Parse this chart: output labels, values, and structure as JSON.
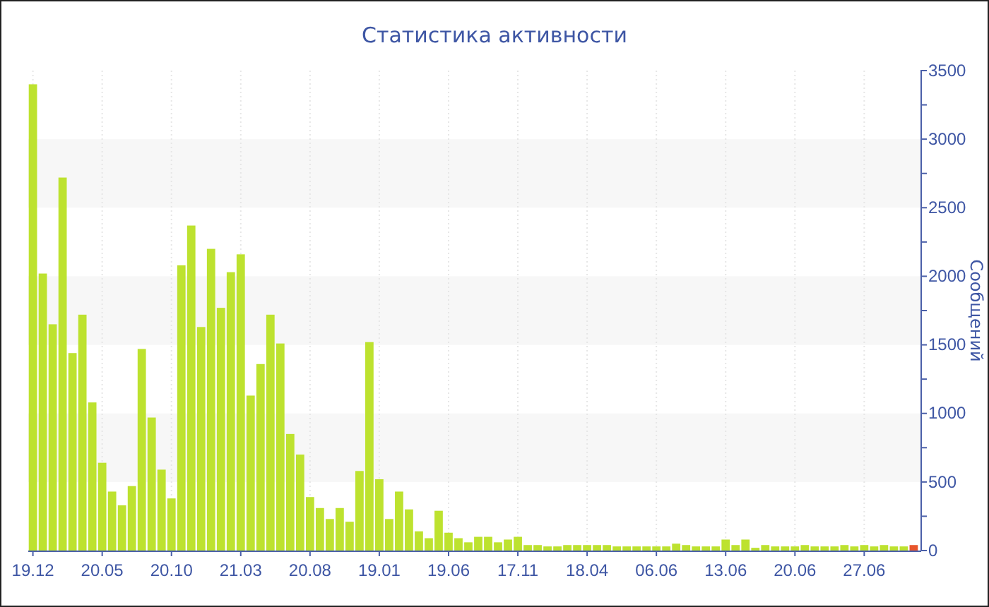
{
  "chart_data": {
    "type": "bar",
    "title": "Статистика активности",
    "ylabel": "Сообщений",
    "categories": [
      "19.12",
      null,
      null,
      null,
      null,
      null,
      null,
      "20.05",
      null,
      null,
      null,
      null,
      null,
      null,
      "20.10",
      null,
      null,
      null,
      null,
      null,
      null,
      "21.03",
      null,
      null,
      null,
      null,
      null,
      null,
      "20.08",
      null,
      null,
      null,
      null,
      null,
      null,
      "19.01",
      null,
      null,
      null,
      null,
      null,
      null,
      "19.06",
      null,
      null,
      null,
      null,
      null,
      null,
      "17.11",
      null,
      null,
      null,
      null,
      null,
      null,
      "18.04",
      null,
      null,
      null,
      null,
      null,
      null,
      "06.06",
      null,
      null,
      null,
      null,
      null,
      null,
      "13.06",
      null,
      null,
      null,
      null,
      null,
      null,
      "20.06",
      null,
      null,
      null,
      null,
      null,
      null,
      "27.06",
      null,
      null,
      null,
      null,
      null
    ],
    "values": [
      3400,
      2020,
      1650,
      2720,
      1440,
      1720,
      1080,
      640,
      430,
      330,
      470,
      1470,
      970,
      590,
      380,
      2080,
      2370,
      1630,
      2200,
      1770,
      2030,
      2160,
      1130,
      1360,
      1720,
      1510,
      850,
      700,
      390,
      310,
      230,
      310,
      210,
      580,
      1520,
      520,
      230,
      430,
      300,
      140,
      90,
      290,
      130,
      90,
      60,
      100,
      100,
      60,
      80,
      100,
      40,
      40,
      30,
      30,
      40,
      40,
      40,
      40,
      40,
      30,
      30,
      30,
      30,
      30,
      30,
      50,
      40,
      30,
      30,
      30,
      80,
      40,
      80,
      20,
      40,
      30,
      30,
      30,
      40,
      30,
      30,
      30,
      40,
      30,
      40,
      30,
      40,
      30,
      30,
      40
    ],
    "colors": [
      "#bde22f",
      "#bde22f",
      "#bde22f",
      "#bde22f",
      "#bde22f",
      "#bde22f",
      "#bde22f",
      "#bde22f",
      "#bde22f",
      "#bde22f",
      "#bde22f",
      "#bde22f",
      "#bde22f",
      "#bde22f",
      "#bde22f",
      "#bde22f",
      "#bde22f",
      "#bde22f",
      "#bde22f",
      "#bde22f",
      "#bde22f",
      "#bde22f",
      "#bde22f",
      "#bde22f",
      "#bde22f",
      "#bde22f",
      "#bde22f",
      "#bde22f",
      "#bde22f",
      "#bde22f",
      "#bde22f",
      "#bde22f",
      "#bde22f",
      "#bde22f",
      "#bde22f",
      "#bde22f",
      "#bde22f",
      "#bde22f",
      "#bde22f",
      "#bde22f",
      "#bde22f",
      "#bde22f",
      "#bde22f",
      "#bde22f",
      "#bde22f",
      "#bde22f",
      "#bde22f",
      "#bde22f",
      "#bde22f",
      "#bde22f",
      "#bde22f",
      "#bde22f",
      "#bde22f",
      "#bde22f",
      "#bde22f",
      "#bde22f",
      "#bde22f",
      "#bde22f",
      "#bde22f",
      "#bde22f",
      "#bde22f",
      "#bde22f",
      "#bde22f",
      "#bde22f",
      "#bde22f",
      "#bde22f",
      "#bde22f",
      "#bde22f",
      "#bde22f",
      "#bde22f",
      "#bde22f",
      "#bde22f",
      "#bde22f",
      "#bde22f",
      "#bde22f",
      "#bde22f",
      "#bde22f",
      "#bde22f",
      "#bde22f",
      "#bde22f",
      "#bde22f",
      "#bde22f",
      "#bde22f",
      "#bde22f",
      "#bde22f",
      "#bde22f",
      "#bde22f",
      "#bde22f",
      "#bde22f",
      "#e8552b"
    ],
    "ylim": [
      0,
      3500
    ],
    "yticks": [
      0,
      {
        "value": 250,
        "label": null
      },
      500,
      {
        "value": 750,
        "label": null
      },
      1000,
      {
        "value": 1250,
        "label": null
      },
      1500,
      {
        "value": 1750,
        "label": null
      },
      2000,
      {
        "value": 2250,
        "label": null
      },
      2500,
      {
        "value": 2750,
        "label": null
      },
      3000,
      {
        "value": 3250,
        "label": null
      },
      3500
    ],
    "bands": [
      {
        "axis": "y",
        "from": 500,
        "to": 1000,
        "color": "#f7f7f7"
      },
      {
        "axis": "y",
        "from": 1500,
        "to": 2000,
        "color": "#f7f7f7"
      },
      {
        "axis": "y",
        "from": 2500,
        "to": 3000,
        "color": "#f7f7f7"
      }
    ],
    "grid": "x"
  }
}
